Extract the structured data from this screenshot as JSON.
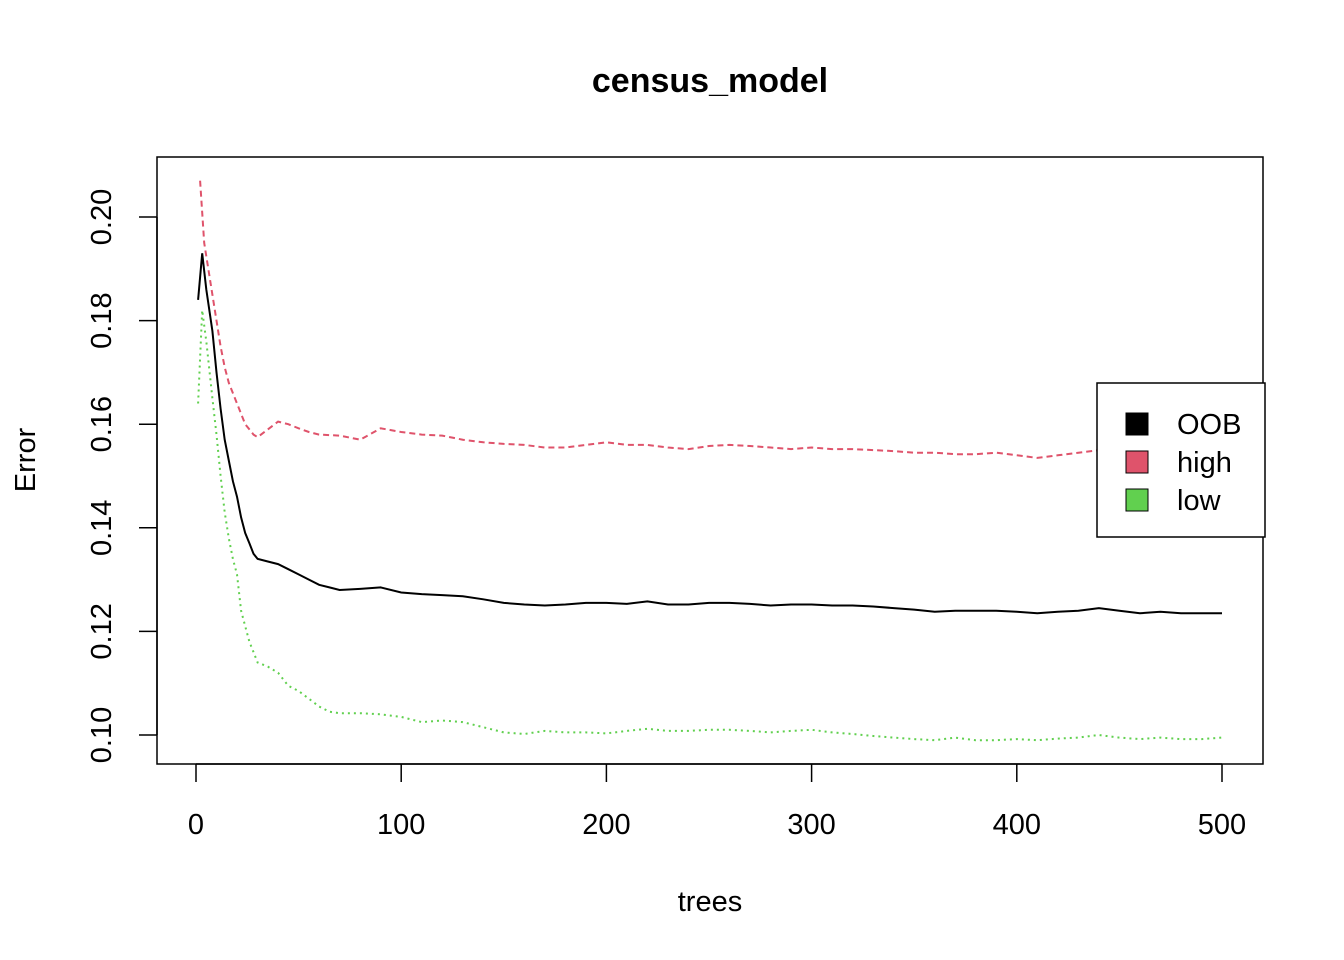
{
  "chart_data": {
    "type": "line",
    "title": "census_model",
    "xlabel": "trees",
    "ylabel": "Error",
    "xlim": [
      0,
      500
    ],
    "ylim": [
      0.095,
      0.212
    ],
    "xticks": [
      0,
      100,
      200,
      300,
      400,
      500
    ],
    "yticks": [
      0.1,
      0.12,
      0.14,
      0.16,
      0.18,
      0.2
    ],
    "grid": false,
    "legend_position": "right",
    "series": [
      {
        "name": "OOB",
        "color": "#000000",
        "style": "solid",
        "points": [
          [
            1,
            0.184
          ],
          [
            3,
            0.193
          ],
          [
            5,
            0.186
          ],
          [
            8,
            0.178
          ],
          [
            10,
            0.17
          ],
          [
            12,
            0.163
          ],
          [
            14,
            0.157
          ],
          [
            16,
            0.153
          ],
          [
            18,
            0.149
          ],
          [
            20,
            0.146
          ],
          [
            22,
            0.142
          ],
          [
            24,
            0.139
          ],
          [
            26,
            0.137
          ],
          [
            28,
            0.135
          ],
          [
            30,
            0.134
          ],
          [
            35,
            0.1335
          ],
          [
            40,
            0.133
          ],
          [
            45,
            0.132
          ],
          [
            50,
            0.131
          ],
          [
            55,
            0.13
          ],
          [
            60,
            0.129
          ],
          [
            65,
            0.1285
          ],
          [
            70,
            0.128
          ],
          [
            80,
            0.1282
          ],
          [
            90,
            0.1285
          ],
          [
            100,
            0.1275
          ],
          [
            110,
            0.1272
          ],
          [
            120,
            0.127
          ],
          [
            130,
            0.1268
          ],
          [
            140,
            0.1262
          ],
          [
            150,
            0.1255
          ],
          [
            160,
            0.1252
          ],
          [
            170,
            0.125
          ],
          [
            180,
            0.1252
          ],
          [
            190,
            0.1255
          ],
          [
            200,
            0.1255
          ],
          [
            210,
            0.1253
          ],
          [
            220,
            0.1258
          ],
          [
            230,
            0.1252
          ],
          [
            240,
            0.1252
          ],
          [
            250,
            0.1255
          ],
          [
            260,
            0.1255
          ],
          [
            270,
            0.1253
          ],
          [
            280,
            0.125
          ],
          [
            290,
            0.1252
          ],
          [
            300,
            0.1252
          ],
          [
            310,
            0.125
          ],
          [
            320,
            0.125
          ],
          [
            330,
            0.1248
          ],
          [
            340,
            0.1245
          ],
          [
            350,
            0.1242
          ],
          [
            360,
            0.1238
          ],
          [
            370,
            0.124
          ],
          [
            380,
            0.124
          ],
          [
            390,
            0.124
          ],
          [
            400,
            0.1238
          ],
          [
            410,
            0.1235
          ],
          [
            420,
            0.1238
          ],
          [
            430,
            0.124
          ],
          [
            440,
            0.1245
          ],
          [
            450,
            0.124
          ],
          [
            460,
            0.1235
          ],
          [
            470,
            0.1238
          ],
          [
            480,
            0.1235
          ],
          [
            490,
            0.1235
          ],
          [
            500,
            0.1235
          ]
        ]
      },
      {
        "name": "high",
        "color": "#df536b",
        "style": "dashed",
        "points": [
          [
            2,
            0.207
          ],
          [
            4,
            0.195
          ],
          [
            6,
            0.19
          ],
          [
            8,
            0.185
          ],
          [
            10,
            0.18
          ],
          [
            12,
            0.175
          ],
          [
            14,
            0.171
          ],
          [
            16,
            0.168
          ],
          [
            18,
            0.166
          ],
          [
            20,
            0.164
          ],
          [
            22,
            0.162
          ],
          [
            24,
            0.16
          ],
          [
            26,
            0.159
          ],
          [
            28,
            0.158
          ],
          [
            30,
            0.1575
          ],
          [
            35,
            0.159
          ],
          [
            40,
            0.1605
          ],
          [
            45,
            0.16
          ],
          [
            50,
            0.1592
          ],
          [
            55,
            0.1585
          ],
          [
            60,
            0.158
          ],
          [
            70,
            0.1578
          ],
          [
            80,
            0.157
          ],
          [
            90,
            0.1592
          ],
          [
            100,
            0.1585
          ],
          [
            110,
            0.158
          ],
          [
            120,
            0.1578
          ],
          [
            130,
            0.157
          ],
          [
            140,
            0.1565
          ],
          [
            150,
            0.1562
          ],
          [
            160,
            0.156
          ],
          [
            170,
            0.1555
          ],
          [
            180,
            0.1555
          ],
          [
            190,
            0.156
          ],
          [
            200,
            0.1565
          ],
          [
            210,
            0.156
          ],
          [
            220,
            0.156
          ],
          [
            230,
            0.1555
          ],
          [
            240,
            0.1552
          ],
          [
            250,
            0.1558
          ],
          [
            260,
            0.156
          ],
          [
            270,
            0.1558
          ],
          [
            280,
            0.1555
          ],
          [
            290,
            0.1552
          ],
          [
            300,
            0.1555
          ],
          [
            310,
            0.1552
          ],
          [
            320,
            0.1552
          ],
          [
            330,
            0.155
          ],
          [
            340,
            0.1548
          ],
          [
            350,
            0.1545
          ],
          [
            360,
            0.1545
          ],
          [
            370,
            0.1542
          ],
          [
            380,
            0.1542
          ],
          [
            390,
            0.1545
          ],
          [
            400,
            0.154
          ],
          [
            410,
            0.1535
          ],
          [
            420,
            0.154
          ],
          [
            430,
            0.1545
          ],
          [
            440,
            0.155
          ]
        ]
      },
      {
        "name": "low",
        "color": "#61d04f",
        "style": "dotted",
        "points": [
          [
            1,
            0.164
          ],
          [
            3,
            0.182
          ],
          [
            5,
            0.176
          ],
          [
            8,
            0.165
          ],
          [
            10,
            0.158
          ],
          [
            12,
            0.15
          ],
          [
            14,
            0.143
          ],
          [
            16,
            0.138
          ],
          [
            18,
            0.134
          ],
          [
            20,
            0.131
          ],
          [
            22,
            0.124
          ],
          [
            24,
            0.121
          ],
          [
            26,
            0.118
          ],
          [
            28,
            0.116
          ],
          [
            30,
            0.114
          ],
          [
            35,
            0.1132
          ],
          [
            40,
            0.112
          ],
          [
            45,
            0.1095
          ],
          [
            50,
            0.1085
          ],
          [
            55,
            0.107
          ],
          [
            60,
            0.1055
          ],
          [
            65,
            0.1045
          ],
          [
            70,
            0.1042
          ],
          [
            80,
            0.1042
          ],
          [
            90,
            0.104
          ],
          [
            100,
            0.1035
          ],
          [
            110,
            0.1025
          ],
          [
            120,
            0.1028
          ],
          [
            130,
            0.1025
          ],
          [
            140,
            0.1015
          ],
          [
            150,
            0.1005
          ],
          [
            160,
            0.1002
          ],
          [
            170,
            0.1008
          ],
          [
            180,
            0.1005
          ],
          [
            190,
            0.1005
          ],
          [
            200,
            0.1003
          ],
          [
            210,
            0.1008
          ],
          [
            220,
            0.1012
          ],
          [
            230,
            0.1008
          ],
          [
            240,
            0.1008
          ],
          [
            250,
            0.101
          ],
          [
            260,
            0.101
          ],
          [
            270,
            0.1008
          ],
          [
            280,
            0.1005
          ],
          [
            290,
            0.1008
          ],
          [
            300,
            0.101
          ],
          [
            310,
            0.1005
          ],
          [
            320,
            0.1002
          ],
          [
            330,
            0.0998
          ],
          [
            340,
            0.0995
          ],
          [
            350,
            0.0992
          ],
          [
            360,
            0.099
          ],
          [
            370,
            0.0995
          ],
          [
            380,
            0.099
          ],
          [
            390,
            0.099
          ],
          [
            400,
            0.0992
          ],
          [
            410,
            0.099
          ],
          [
            420,
            0.0993
          ],
          [
            430,
            0.0995
          ],
          [
            440,
            0.1
          ],
          [
            450,
            0.0995
          ],
          [
            460,
            0.0992
          ],
          [
            470,
            0.0995
          ],
          [
            480,
            0.0992
          ],
          [
            490,
            0.0992
          ],
          [
            500,
            0.0995
          ]
        ]
      }
    ]
  }
}
